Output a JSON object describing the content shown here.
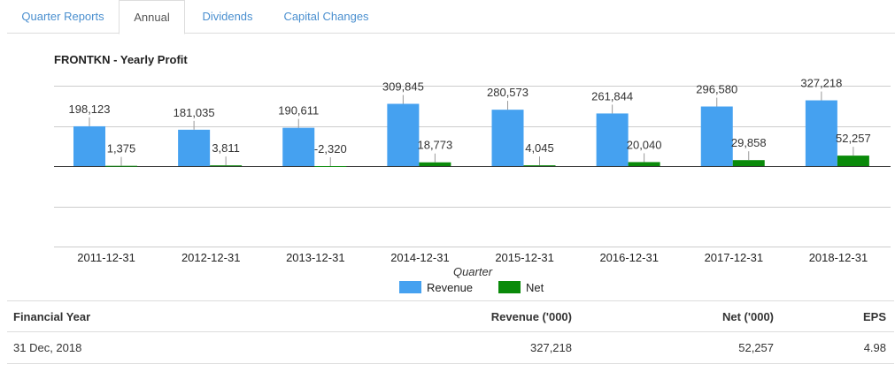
{
  "tabs": [
    {
      "label": "Quarter Reports",
      "active": false
    },
    {
      "label": "Annual",
      "active": true
    },
    {
      "label": "Dividends",
      "active": false
    },
    {
      "label": "Capital Changes",
      "active": false
    }
  ],
  "chart_title": "FRONTKN - Yearly Profit",
  "chart_data": {
    "type": "bar",
    "title": "FRONTKN - Yearly Profit",
    "xlabel": "Quarter",
    "ylabel": "",
    "categories": [
      "2011-12-31",
      "2012-12-31",
      "2013-12-31",
      "2014-12-31",
      "2015-12-31",
      "2016-12-31",
      "2017-12-31",
      "2018-12-31"
    ],
    "series": [
      {
        "name": "Revenue",
        "color": "#45a1f0",
        "values": [
          198123,
          181035,
          190611,
          309845,
          280573,
          261844,
          296580,
          327218
        ],
        "labels": [
          "198,123",
          "181,035",
          "190,611",
          "309,845",
          "280,573",
          "261,844",
          "296,580",
          "327,218"
        ]
      },
      {
        "name": "Net",
        "color": "#0a8a0a",
        "values": [
          1375,
          3811,
          -2320,
          18773,
          4045,
          20040,
          29858,
          52257
        ],
        "labels": [
          "1,375",
          "3,811",
          "-2,320",
          "18,773",
          "4,045",
          "20,040",
          "29,858",
          "52,257"
        ]
      }
    ],
    "ylim": [
      -400000,
      400000
    ],
    "grid": true,
    "legend_position": "bottom"
  },
  "table": {
    "headers": [
      "Financial Year",
      "Revenue ('000)",
      "Net ('000)",
      "EPS"
    ],
    "rows": [
      [
        "31 Dec, 2018",
        "327,218",
        "52,257",
        "4.98"
      ]
    ]
  }
}
